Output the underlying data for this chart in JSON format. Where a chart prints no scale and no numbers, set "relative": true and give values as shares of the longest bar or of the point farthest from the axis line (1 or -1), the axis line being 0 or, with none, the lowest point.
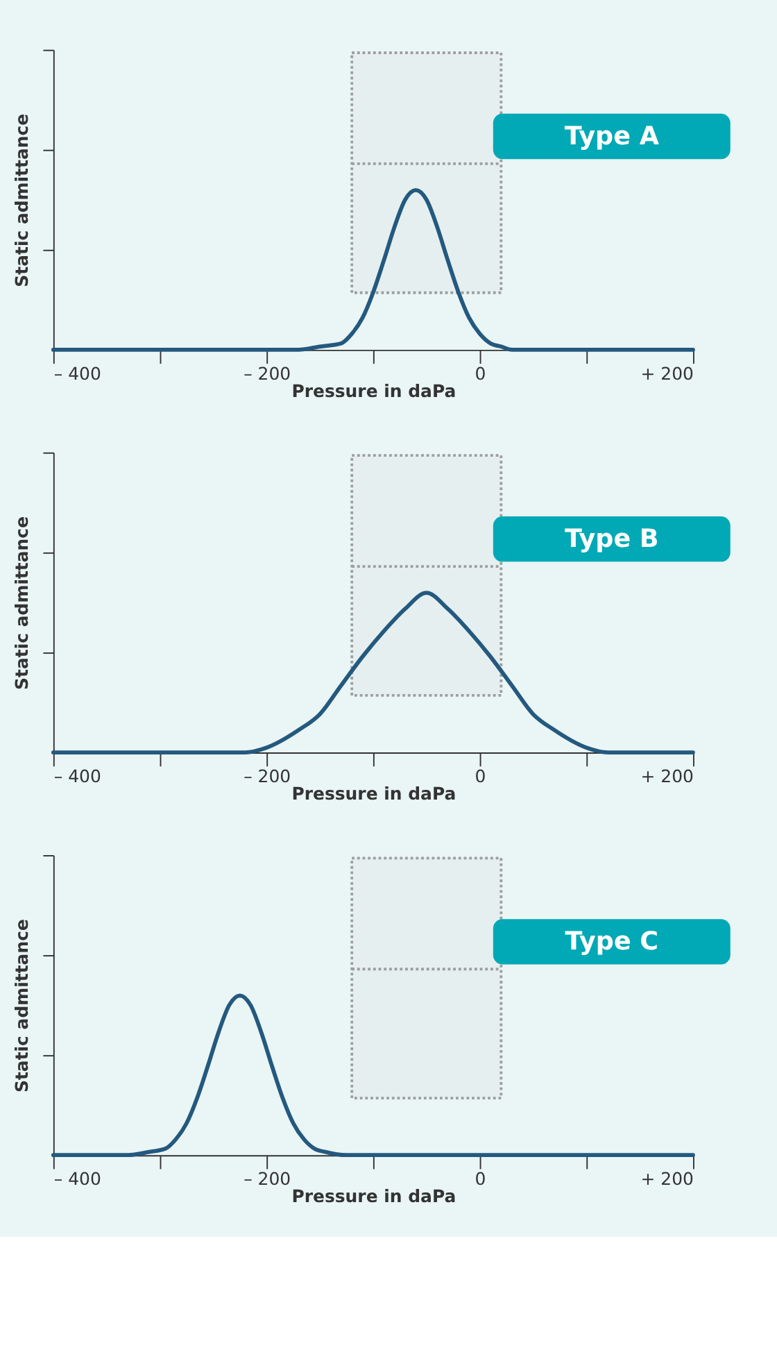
{
  "chart_data": [
    {
      "type": "line",
      "relative": true,
      "xlabel": "Pressure in daPa",
      "ylabel": "Static admittance",
      "annotations": [
        "Type A"
      ],
      "xlim": [
        -400,
        200
      ],
      "xticks": [
        {
          "value": -400,
          "label": "– 400"
        },
        {
          "value": -300,
          "label": null
        },
        {
          "value": -200,
          "label": "– 200"
        },
        {
          "value": -100,
          "label": null
        },
        0,
        {
          "value": 100,
          "label": null
        },
        {
          "value": 200,
          "label": "+ 200"
        }
      ],
      "grid": false,
      "marker": "none",
      "line_style": "solid",
      "bands": [
        {
          "axis": "x",
          "from": -120,
          "to": 20,
          "color": "#9e9e9e"
        }
      ],
      "series": [
        {
          "color": "#24597f",
          "x": [
            -400,
            -170,
            -150,
            -130,
            -120,
            -110,
            -100,
            -90,
            -80,
            -70,
            -60,
            -50,
            -40,
            -30,
            -20,
            -10,
            0,
            10,
            20,
            30,
            50,
            200
          ],
          "values": [
            0,
            0,
            0.02,
            0.04,
            0.1,
            0.2,
            0.36,
            0.56,
            0.77,
            0.94,
            1,
            0.94,
            0.77,
            0.56,
            0.36,
            0.2,
            0.1,
            0.04,
            0.02,
            0,
            0,
            0
          ]
        }
      ]
    },
    {
      "type": "line",
      "relative": true,
      "xlabel": "Pressure in daPa",
      "ylabel": "Static admittance",
      "annotations": [
        "Type B"
      ],
      "xlim": [
        -400,
        200
      ],
      "xticks": [
        {
          "value": -400,
          "label": "– 400"
        },
        {
          "value": -300,
          "label": null
        },
        {
          "value": -200,
          "label": "– 200"
        },
        {
          "value": -100,
          "label": null
        },
        0,
        {
          "value": 100,
          "label": null
        },
        {
          "value": 200,
          "label": "+ 200"
        }
      ],
      "grid": false,
      "marker": "none",
      "line_style": "solid",
      "bands": [
        {
          "axis": "x",
          "from": -120,
          "to": 20,
          "color": "#9e9e9e"
        }
      ],
      "series": [
        {
          "color": "#24597f",
          "x": [
            -400,
            -220,
            -200,
            -170,
            -150,
            -130,
            -110,
            -90,
            -70,
            -50,
            -30,
            -10,
            10,
            30,
            50,
            70,
            100,
            120,
            200
          ],
          "values": [
            0,
            0,
            0.03,
            0.14,
            0.24,
            0.42,
            0.6,
            0.76,
            0.9,
            1,
            0.9,
            0.76,
            0.6,
            0.42,
            0.24,
            0.14,
            0.03,
            0,
            0
          ]
        }
      ]
    },
    {
      "type": "line",
      "relative": true,
      "xlabel": "Pressure in daPa",
      "ylabel": "Static admittance",
      "annotations": [
        "Type C"
      ],
      "xlim": [
        -400,
        200
      ],
      "xticks": [
        {
          "value": -400,
          "label": "– 400"
        },
        {
          "value": -300,
          "label": null
        },
        {
          "value": -200,
          "label": "– 200"
        },
        {
          "value": -100,
          "label": null
        },
        0,
        {
          "value": 100,
          "label": null
        },
        {
          "value": 200,
          "label": "+ 200"
        }
      ],
      "grid": false,
      "marker": "none",
      "line_style": "solid",
      "bands": [
        {
          "axis": "x",
          "from": -120,
          "to": 20,
          "color": "#9e9e9e"
        }
      ],
      "series": [
        {
          "color": "#24597f",
          "x": [
            -400,
            -330,
            -310,
            -295,
            -285,
            -275,
            -265,
            -255,
            -245,
            -235,
            -225,
            -215,
            -205,
            -195,
            -185,
            -175,
            -165,
            -155,
            -145,
            -125,
            200
          ],
          "values": [
            0,
            0,
            0.02,
            0.04,
            0.1,
            0.2,
            0.36,
            0.56,
            0.77,
            0.94,
            1,
            0.94,
            0.77,
            0.56,
            0.36,
            0.2,
            0.1,
            0.04,
            0.02,
            0,
            0
          ]
        }
      ]
    }
  ]
}
